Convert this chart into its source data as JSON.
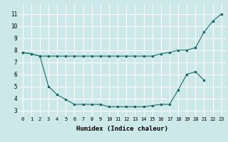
{
  "xlabel": "Humidex (Indice chaleur)",
  "bg_color": "#cce8e8",
  "grid_color": "#ffffff",
  "line_color": "#1a6b6b",
  "x_ticks": [
    0,
    1,
    2,
    3,
    4,
    5,
    6,
    7,
    8,
    9,
    10,
    11,
    12,
    13,
    14,
    15,
    16,
    17,
    18,
    19,
    20,
    21,
    22,
    23
  ],
  "y_ticks": [
    3,
    4,
    5,
    6,
    7,
    8,
    9,
    10,
    11
  ],
  "ylim": [
    2.5,
    11.8
  ],
  "xlim": [
    -0.5,
    23.5
  ],
  "line1_x": [
    0,
    1,
    2,
    3,
    4,
    5,
    6,
    7,
    8,
    9,
    10,
    11,
    12,
    13,
    14,
    15,
    16,
    17,
    18,
    19,
    20,
    21,
    22,
    23
  ],
  "line1_y": [
    7.8,
    7.7,
    7.5,
    7.5,
    7.5,
    7.5,
    7.5,
    7.5,
    7.5,
    7.5,
    7.5,
    7.5,
    7.5,
    7.5,
    7.5,
    7.5,
    7.7,
    7.8,
    8.0,
    8.0,
    8.2,
    9.5,
    10.4,
    11.0
  ],
  "line2_x": [
    0,
    1,
    2,
    3,
    4,
    5,
    6,
    7,
    8,
    9,
    10,
    11,
    12,
    13,
    14,
    15,
    16,
    17,
    18,
    19,
    20,
    21
  ],
  "line2_y": [
    7.8,
    7.7,
    7.5,
    5.0,
    4.3,
    3.9,
    3.5,
    3.5,
    3.5,
    3.5,
    3.3,
    3.3,
    3.3,
    3.3,
    3.3,
    3.4,
    3.5,
    3.5,
    4.7,
    6.0,
    6.2,
    5.5
  ]
}
